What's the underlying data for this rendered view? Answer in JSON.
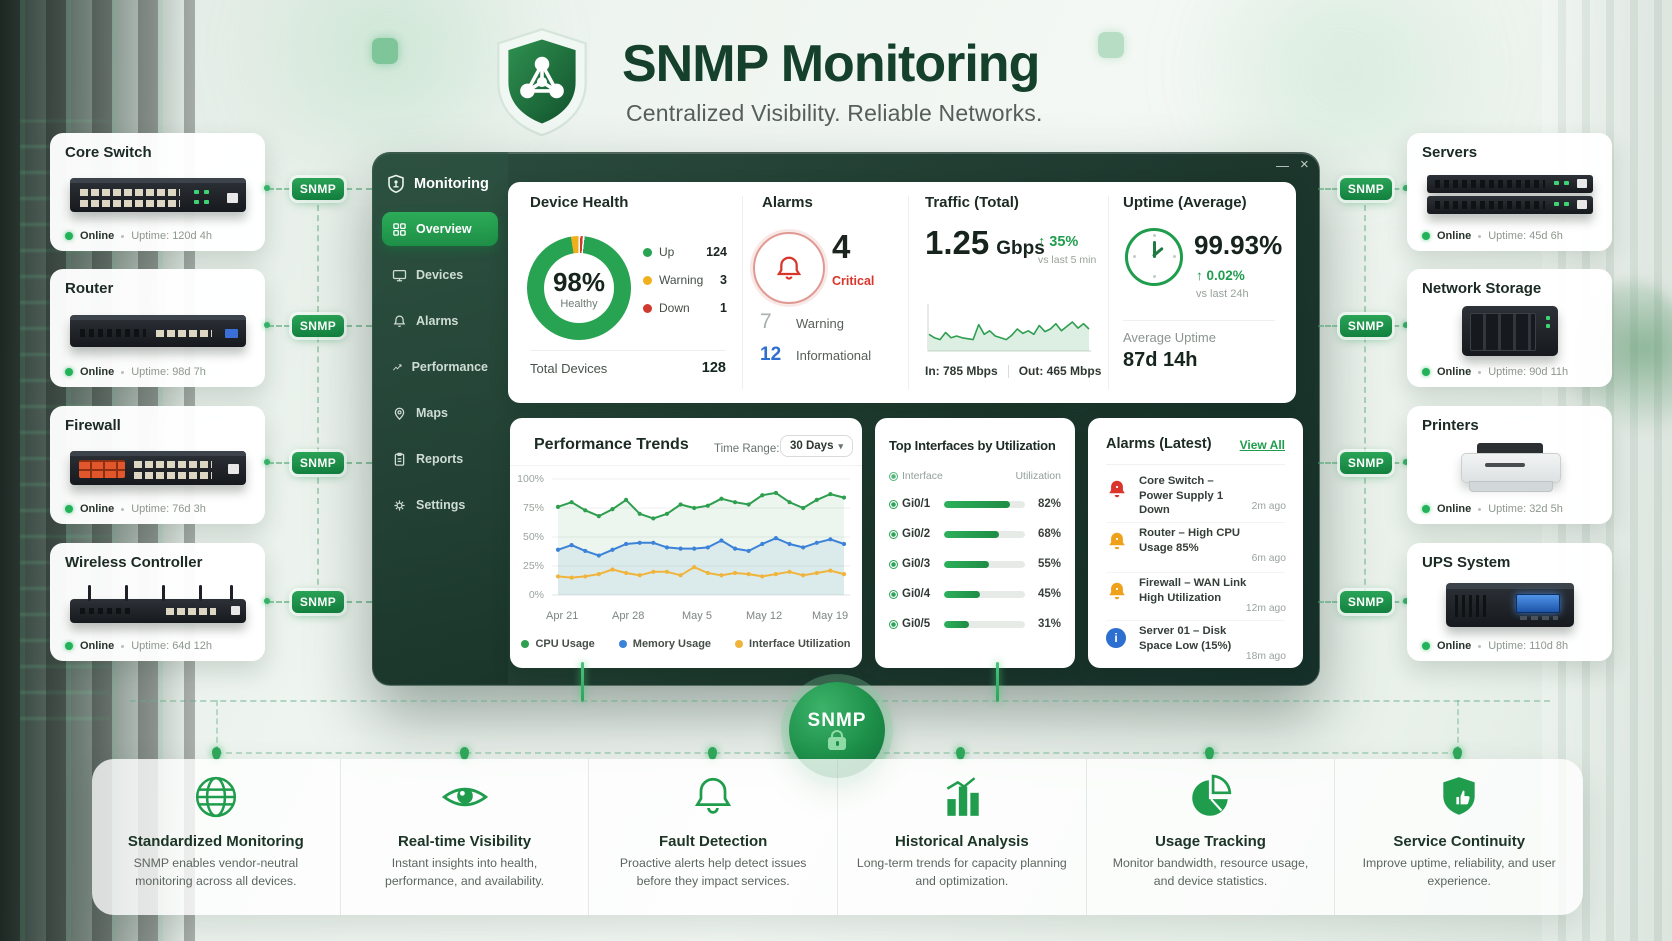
{
  "header": {
    "title": "SNMP Monitoring",
    "subtitle": "Centralized Visibility.  Reliable Networks.",
    "logo_icon": "shield-network-icon"
  },
  "snmp_label": "SNMP",
  "left_devices": [
    {
      "name": "Core Switch",
      "status": "Online",
      "uptime": "Uptime: 120d 4h"
    },
    {
      "name": "Router",
      "status": "Online",
      "uptime": "Uptime: 98d 7h"
    },
    {
      "name": "Firewall",
      "status": "Online",
      "uptime": "Uptime: 76d 3h"
    },
    {
      "name": "Wireless Controller",
      "status": "Online",
      "uptime": "Uptime: 64d 12h"
    }
  ],
  "right_devices": [
    {
      "name": "Servers",
      "status": "Online",
      "uptime": "Uptime: 45d 6h"
    },
    {
      "name": "Network Storage",
      "status": "Online",
      "uptime": "Uptime: 90d 11h"
    },
    {
      "name": "Printers",
      "status": "Online",
      "uptime": "Uptime: 32d 5h"
    },
    {
      "name": "UPS System",
      "status": "Online",
      "uptime": "Uptime: 110d 8h"
    }
  ],
  "dashboard": {
    "window_controls": {
      "minimize": "—",
      "close": "×"
    },
    "sidebar": {
      "title": "Monitoring",
      "items": [
        {
          "label": "Overview",
          "icon": "grid-icon",
          "active": true
        },
        {
          "label": "Devices",
          "icon": "monitor-icon",
          "active": false
        },
        {
          "label": "Alarms",
          "icon": "bell-icon",
          "active": false
        },
        {
          "label": "Performance",
          "icon": "trend-icon",
          "active": false
        },
        {
          "label": "Maps",
          "icon": "map-pin-icon",
          "active": false
        },
        {
          "label": "Reports",
          "icon": "clipboard-icon",
          "active": false
        },
        {
          "label": "Settings",
          "icon": "gear-icon",
          "active": false
        }
      ]
    },
    "device_health": {
      "title": "Device Health",
      "center_value": "98%",
      "center_label": "Healthy",
      "legend": [
        {
          "label": "Up",
          "value": "124",
          "color": "#27a351"
        },
        {
          "label": "Warning",
          "value": "3",
          "color": "#f0b01c"
        },
        {
          "label": "Down",
          "value": "1",
          "color": "#d0392e"
        }
      ],
      "total_label": "Total Devices",
      "total_value": "128"
    },
    "alarm_summary": {
      "title": "Alarms",
      "critical_value": "4",
      "critical_label": "Critical",
      "warning_value": "7",
      "warning_label": "Warning",
      "info_value": "12",
      "info_label": "Informational"
    },
    "traffic": {
      "title": "Traffic (Total)",
      "value": "1.25",
      "unit": "Gbps",
      "delta": "↑ 35%",
      "delta_note": "vs last 5 min",
      "in_label": "In: 785 Mbps",
      "out_label": "Out: 465 Mbps"
    },
    "uptime": {
      "title": "Uptime (Average)",
      "value": "99.93%",
      "delta": "↑ 0.02%",
      "delta_note": "vs last 24h",
      "average_label": "Average Uptime",
      "average_value": "87d 14h"
    },
    "interfaces": {
      "title": "Top Interfaces by Utilization",
      "col_interface": "Interface",
      "col_utilization": "Utilization",
      "labels": [
        "82%",
        "68%",
        "55%",
        "45%",
        "31%"
      ]
    },
    "alarms_latest": {
      "title": "Alarms (Latest)",
      "view_all": "View All",
      "items": [
        {
          "severity": "critical",
          "text": "Core Switch – Power Supply 1 Down",
          "time": "2m ago"
        },
        {
          "severity": "warning",
          "text": "Router – High CPU Usage 85%",
          "time": "6m ago"
        },
        {
          "severity": "warning",
          "text": "Firewall – WAN Link High Utilization",
          "time": "12m ago"
        },
        {
          "severity": "info",
          "text": "Server 01 – Disk Space Low (15%)",
          "time": "18m ago"
        }
      ]
    }
  },
  "hub": {
    "label": "SNMP",
    "icon": "lock-icon"
  },
  "features": [
    {
      "icon": "globe-icon",
      "title": "Standardized Monitoring",
      "description": "SNMP enables vendor-neutral monitoring across all devices."
    },
    {
      "icon": "eye-icon",
      "title": "Real-time Visibility",
      "description": "Instant insights into health, performance, and availability."
    },
    {
      "icon": "bell-icon",
      "title": "Fault Detection",
      "description": "Proactive alerts help detect issues before they impact services."
    },
    {
      "icon": "bar-chart-icon",
      "title": "Historical Analysis",
      "description": "Long-term trends for capacity planning and optimization."
    },
    {
      "icon": "pie-chart-icon",
      "title": "Usage Tracking",
      "description": "Monitor bandwidth, resource usage, and device statistics."
    },
    {
      "icon": "shield-check-icon",
      "title": "Service Continuity",
      "description": "Improve uptime, reliability, and user experience."
    }
  ],
  "colors": {
    "brand_green": "#1f9d4d",
    "dark_green": "#14402c",
    "critical_red": "#d9352b",
    "warning_amber": "#f0a11a",
    "info_blue": "#2d6fd0"
  },
  "chart_data": [
    {
      "id": "performance_trends",
      "type": "line",
      "title": "Performance Trends",
      "time_range_label": "Time Range:",
      "time_range_value": "30 Days",
      "x_ticks": [
        "Apr 21",
        "Apr 28",
        "May 5",
        "May 12",
        "May 19"
      ],
      "y_ticks": [
        "0%",
        "25%",
        "50%",
        "75%",
        "100%"
      ],
      "ylim": [
        0,
        100
      ],
      "grid": true,
      "legend_position": "bottom",
      "series": [
        {
          "name": "CPU Usage",
          "color": "#2e9e4f",
          "values": [
            76,
            80,
            73,
            68,
            74,
            82,
            70,
            66,
            70,
            78,
            75,
            77,
            83,
            80,
            78,
            86,
            88,
            80,
            75,
            82,
            87,
            84
          ]
        },
        {
          "name": "Memory Usage",
          "color": "#3b82d8",
          "values": [
            39,
            43,
            38,
            34,
            39,
            44,
            45,
            45,
            41,
            40,
            40,
            41,
            47,
            40,
            38,
            44,
            49,
            44,
            41,
            45,
            48,
            44
          ]
        },
        {
          "name": "Interface Utilization",
          "color": "#f0b43c",
          "values": [
            16,
            15,
            16,
            18,
            22,
            19,
            17,
            20,
            20,
            17,
            24,
            19,
            17,
            19,
            18,
            16,
            18,
            20,
            17,
            19,
            21,
            18
          ]
        }
      ]
    },
    {
      "id": "traffic_sparkline",
      "type": "area",
      "color": "#2e9e4f",
      "ylim": [
        0,
        100
      ],
      "values": [
        38,
        30,
        26,
        42,
        30,
        34,
        30,
        28,
        26,
        60,
        38,
        46,
        34,
        30,
        26,
        36,
        50,
        40,
        46,
        38,
        58,
        44,
        50,
        62,
        46,
        56,
        66,
        52,
        62,
        50
      ]
    },
    {
      "id": "device_health_donut",
      "type": "pie",
      "center_label": "98%",
      "center_sublabel": "Healthy",
      "slices": [
        {
          "label": "Up",
          "value": 124,
          "color": "#27a351"
        },
        {
          "label": "Warning",
          "value": 3,
          "color": "#f0b01c"
        },
        {
          "label": "Down",
          "value": 1,
          "color": "#d0392e"
        }
      ]
    },
    {
      "id": "top_interfaces",
      "type": "bar",
      "categories": [
        "Gi0/1",
        "Gi0/2",
        "Gi0/3",
        "Gi0/4",
        "Gi0/5"
      ],
      "values": [
        82,
        68,
        55,
        45,
        31
      ],
      "unit": "%"
    }
  ]
}
